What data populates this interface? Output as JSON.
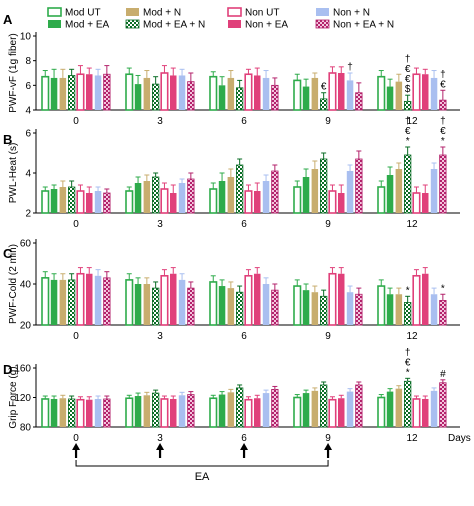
{
  "legend": [
    {
      "label": "Mod UT",
      "color": "#2eab4b",
      "pattern": "open"
    },
    {
      "label": "Mod + N",
      "color": "#c8ad6e",
      "pattern": "solid"
    },
    {
      "label": "Non UT",
      "color": "#e0407a",
      "pattern": "open"
    },
    {
      "label": "Non + N",
      "color": "#a9bff0",
      "pattern": "solid"
    },
    {
      "label": "Mod + EA",
      "color": "#2eab4b",
      "pattern": "solid"
    },
    {
      "label": "Mod + EA + N",
      "color": "#0a6d25",
      "pattern": "checker"
    },
    {
      "label": "Non + EA",
      "color": "#e0407a",
      "pattern": "solid"
    },
    {
      "label": "Non + EA + N",
      "color": "#b3226b",
      "pattern": "checker"
    }
  ],
  "days_label": "Days",
  "ea_label": "EA",
  "ea_arrow_days": [
    "0",
    "3",
    "6",
    "9"
  ],
  "chart_data": [
    {
      "type": "bar",
      "panel": "A",
      "ylabel": "PWF-vF (1g fiber)",
      "ylim": [
        4,
        10
      ],
      "yticks": [
        "4",
        "6",
        "8",
        "10"
      ],
      "categories": [
        "0",
        "3",
        "6",
        "9",
        "12"
      ],
      "series": [
        {
          "name": "Mod UT",
          "values": [
            6.7,
            6.9,
            6.7,
            6.4,
            6.7
          ],
          "errors": [
            0.5,
            0.5,
            0.4,
            0.5,
            0.5
          ]
        },
        {
          "name": "Mod + EA",
          "values": [
            6.6,
            6.1,
            6.0,
            5.9,
            5.9
          ],
          "errors": [
            0.7,
            0.7,
            0.7,
            0.6,
            0.6
          ]
        },
        {
          "name": "Mod + N",
          "values": [
            6.6,
            6.6,
            6.6,
            6.6,
            6.3
          ],
          "errors": [
            0.7,
            0.6,
            0.6,
            0.4,
            0.6
          ]
        },
        {
          "name": "Mod + EA + N",
          "values": [
            6.8,
            6.1,
            5.8,
            4.9,
            4.7
          ],
          "errors": [
            0.5,
            0.6,
            0.6,
            0.5,
            0.5
          ]
        },
        {
          "name": "Non UT",
          "values": [
            6.9,
            7.0,
            6.9,
            7.0,
            6.9
          ],
          "errors": [
            0.7,
            0.6,
            0.4,
            0.5,
            0.5
          ]
        },
        {
          "name": "Non + EA",
          "values": [
            6.9,
            6.8,
            6.8,
            7.0,
            6.9
          ],
          "errors": [
            0.5,
            0.6,
            0.6,
            0.5,
            0.4
          ]
        },
        {
          "name": "Non + N",
          "values": [
            6.8,
            6.8,
            6.6,
            6.4,
            6.6
          ],
          "errors": [
            0.5,
            0.5,
            0.6,
            0.6,
            0.6
          ]
        },
        {
          "name": "Non + EA + N",
          "values": [
            6.9,
            6.3,
            6.0,
            5.4,
            4.8
          ],
          "errors": [
            0.7,
            0.7,
            0.6,
            0.8,
            0.8
          ]
        }
      ],
      "annotations": [
        {
          "category": "9",
          "series": "Mod + EA + N",
          "text": "€"
        },
        {
          "category": "9",
          "series": "Non + N",
          "text": "†"
        },
        {
          "category": "12",
          "series": "Mod + EA + N",
          "text": "† € € $"
        },
        {
          "category": "12",
          "series": "Non + EA + N",
          "text": "† €"
        }
      ]
    },
    {
      "type": "bar",
      "panel": "B",
      "ylabel": "PWL-Heat (s)",
      "ylim": [
        2,
        6
      ],
      "yticks": [
        "2",
        "4",
        "6"
      ],
      "categories": [
        "0",
        "3",
        "6",
        "9",
        "12"
      ],
      "series": [
        {
          "name": "Mod UT",
          "values": [
            3.1,
            3.1,
            3.2,
            3.3,
            3.3
          ],
          "errors": [
            0.2,
            0.2,
            0.3,
            0.3,
            0.3
          ]
        },
        {
          "name": "Mod + EA",
          "values": [
            3.2,
            3.5,
            3.6,
            3.8,
            3.9
          ],
          "errors": [
            0.2,
            0.3,
            0.4,
            0.4,
            0.4
          ]
        },
        {
          "name": "Mod + N",
          "values": [
            3.3,
            3.6,
            3.8,
            4.2,
            4.2
          ],
          "errors": [
            0.3,
            0.3,
            0.4,
            0.4,
            0.3
          ]
        },
        {
          "name": "Mod + EA + N",
          "values": [
            3.3,
            3.8,
            4.4,
            4.7,
            4.9
          ],
          "errors": [
            0.3,
            0.2,
            0.3,
            0.3,
            0.4
          ]
        },
        {
          "name": "Non UT",
          "values": [
            3.1,
            3.2,
            3.1,
            3.1,
            3.0
          ],
          "errors": [
            0.3,
            0.3,
            0.3,
            0.3,
            0.3
          ]
        },
        {
          "name": "Non + EA",
          "values": [
            3.0,
            3.0,
            3.1,
            3.0,
            3.0
          ],
          "errors": [
            0.3,
            0.4,
            0.4,
            0.4,
            0.4
          ]
        },
        {
          "name": "Non + N",
          "values": [
            3.1,
            3.5,
            3.6,
            4.1,
            4.2
          ],
          "errors": [
            0.2,
            0.2,
            0.3,
            0.3,
            0.3
          ]
        },
        {
          "name": "Non + EA + N",
          "values": [
            3.0,
            3.7,
            4.1,
            4.7,
            4.9
          ],
          "errors": [
            0.2,
            0.3,
            0.3,
            0.4,
            0.4
          ]
        }
      ],
      "annotations": [
        {
          "category": "12",
          "series": "Mod + EA + N",
          "text": "† € *"
        },
        {
          "category": "12",
          "series": "Non + EA + N",
          "text": "† € *"
        }
      ]
    },
    {
      "type": "bar",
      "panel": "C",
      "ylabel": "PWF-Cold (2 min)",
      "ylim": [
        20,
        60
      ],
      "yticks": [
        "20",
        "40",
        "60"
      ],
      "categories": [
        "0",
        "3",
        "6",
        "9",
        "12"
      ],
      "series": [
        {
          "name": "Mod UT",
          "values": [
            43,
            42,
            41,
            39,
            39
          ],
          "errors": [
            3,
            3,
            3,
            3,
            3
          ]
        },
        {
          "name": "Mod + EA",
          "values": [
            42,
            40,
            39,
            37,
            35
          ],
          "errors": [
            3,
            3,
            3,
            3,
            3
          ]
        },
        {
          "name": "Mod + N",
          "values": [
            42,
            40,
            38,
            36,
            35
          ],
          "errors": [
            3,
            3,
            3,
            3,
            3
          ]
        },
        {
          "name": "Mod + EA + N",
          "values": [
            42,
            38,
            36,
            34,
            31
          ],
          "errors": [
            3,
            3,
            3,
            3,
            3
          ]
        },
        {
          "name": "Non UT",
          "values": [
            45,
            44,
            44,
            45,
            44
          ],
          "errors": [
            3,
            3,
            3,
            3,
            3
          ]
        },
        {
          "name": "Non + EA",
          "values": [
            45,
            45,
            45,
            45,
            45
          ],
          "errors": [
            3,
            3,
            3,
            3,
            3
          ]
        },
        {
          "name": "Non + N",
          "values": [
            44,
            42,
            40,
            36,
            35
          ],
          "errors": [
            3,
            3,
            3,
            3,
            3
          ]
        },
        {
          "name": "Non + EA + N",
          "values": [
            43,
            38,
            37,
            35,
            32
          ],
          "errors": [
            3,
            3,
            3,
            3,
            3
          ]
        }
      ],
      "annotations": [
        {
          "category": "12",
          "series": "Mod + EA + N",
          "text": "*"
        },
        {
          "category": "12",
          "series": "Non + EA + N",
          "text": "*"
        }
      ]
    },
    {
      "type": "bar",
      "panel": "D",
      "ylabel": "Grip Force (g)",
      "ylim": [
        80,
        160
      ],
      "yticks": [
        "80",
        "120",
        "160"
      ],
      "categories": [
        "0",
        "3",
        "6",
        "9",
        "12"
      ],
      "series": [
        {
          "name": "Mod UT",
          "values": [
            118,
            119,
            119,
            120,
            120
          ],
          "errors": [
            4,
            4,
            4,
            4,
            4
          ]
        },
        {
          "name": "Mod + EA",
          "values": [
            118,
            122,
            124,
            126,
            128
          ],
          "errors": [
            4,
            4,
            4,
            4,
            4
          ]
        },
        {
          "name": "Mod + N",
          "values": [
            119,
            123,
            127,
            129,
            132
          ],
          "errors": [
            4,
            4,
            4,
            4,
            4
          ]
        },
        {
          "name": "Mod + EA + N",
          "values": [
            118,
            126,
            133,
            137,
            142
          ],
          "errors": [
            4,
            4,
            4,
            4,
            4
          ]
        },
        {
          "name": "Non UT",
          "values": [
            117,
            118,
            117,
            117,
            118
          ],
          "errors": [
            4,
            4,
            4,
            4,
            4
          ]
        },
        {
          "name": "Non + EA",
          "values": [
            117,
            118,
            119,
            119,
            118
          ],
          "errors": [
            4,
            4,
            4,
            4,
            4
          ]
        },
        {
          "name": "Non + N",
          "values": [
            118,
            123,
            126,
            128,
            129
          ],
          "errors": [
            4,
            4,
            4,
            4,
            4
          ]
        },
        {
          "name": "Non + EA + N",
          "values": [
            118,
            124,
            131,
            137,
            140
          ],
          "errors": [
            4,
            4,
            4,
            4,
            4
          ]
        }
      ],
      "annotations": [
        {
          "category": "12",
          "series": "Mod + EA + N",
          "text": "† € *"
        },
        {
          "category": "12",
          "series": "Non + EA + N",
          "text": "#"
        }
      ]
    }
  ]
}
